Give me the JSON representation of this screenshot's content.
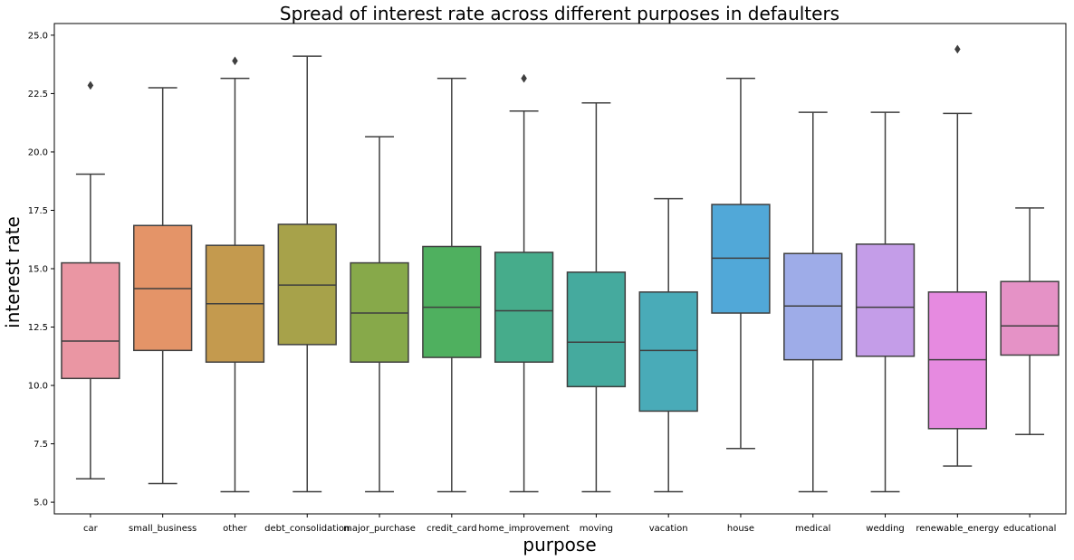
{
  "chart_data": {
    "type": "box",
    "title": "Spread of interest rate across different purposes in defaulters",
    "xlabel": "purpose",
    "ylabel": "interest rate",
    "ylim": [
      4.5,
      25.5
    ],
    "yticks": [
      5.0,
      7.5,
      10.0,
      12.5,
      15.0,
      17.5,
      20.0,
      22.5,
      25.0
    ],
    "ytick_labels": [
      "5.0",
      "7.5",
      "10.0",
      "12.5",
      "15.0",
      "17.5",
      "20.0",
      "22.5",
      "25.0"
    ],
    "grid": false,
    "categories": [
      "car",
      "small_business",
      "other",
      "debt_consolidation",
      "major_purchase",
      "credit_card",
      "home_improvement",
      "moving",
      "vacation",
      "house",
      "medical",
      "wedding",
      "renewable_energy",
      "educational"
    ],
    "boxes": [
      {
        "category": "car",
        "whisker_low": 6.0,
        "q1": 10.3,
        "median": 11.9,
        "q3": 15.25,
        "whisker_high": 19.05,
        "outliers": [
          22.85
        ],
        "color": "#ea96a3"
      },
      {
        "category": "small_business",
        "whisker_low": 5.8,
        "q1": 11.5,
        "median": 14.15,
        "q3": 16.85,
        "whisker_high": 22.75,
        "outliers": [],
        "color": "#e49468"
      },
      {
        "category": "other",
        "whisker_low": 5.45,
        "q1": 11.0,
        "median": 13.5,
        "q3": 16.0,
        "whisker_high": 23.15,
        "outliers": [
          23.9
        ],
        "color": "#c49a4e"
      },
      {
        "category": "debt_consolidation",
        "whisker_low": 5.45,
        "q1": 11.75,
        "median": 14.3,
        "q3": 16.9,
        "whisker_high": 24.1,
        "outliers": [],
        "color": "#a7a24a"
      },
      {
        "category": "major_purchase",
        "whisker_low": 5.45,
        "q1": 11.0,
        "median": 13.1,
        "q3": 15.25,
        "whisker_high": 20.65,
        "outliers": [],
        "color": "#87a94a"
      },
      {
        "category": "credit_card",
        "whisker_low": 5.45,
        "q1": 11.2,
        "median": 13.35,
        "q3": 15.95,
        "whisker_high": 23.15,
        "outliers": [],
        "color": "#4fb05f"
      },
      {
        "category": "home_improvement",
        "whisker_low": 5.45,
        "q1": 11.0,
        "median": 13.2,
        "q3": 15.7,
        "whisker_high": 21.75,
        "outliers": [
          23.15
        ],
        "color": "#46ac8b"
      },
      {
        "category": "moving",
        "whisker_low": 5.45,
        "q1": 9.95,
        "median": 11.85,
        "q3": 14.85,
        "whisker_high": 22.1,
        "outliers": [],
        "color": "#45aa9e"
      },
      {
        "category": "vacation",
        "whisker_low": 5.45,
        "q1": 8.9,
        "median": 11.5,
        "q3": 14.0,
        "whisker_high": 18.0,
        "outliers": [],
        "color": "#49abb8"
      },
      {
        "category": "house",
        "whisker_low": 7.3,
        "q1": 13.1,
        "median": 15.45,
        "q3": 17.75,
        "whisker_high": 23.15,
        "outliers": [],
        "color": "#51a8d8"
      },
      {
        "category": "medical",
        "whisker_low": 5.45,
        "q1": 11.1,
        "median": 13.4,
        "q3": 15.65,
        "whisker_high": 21.7,
        "outliers": [],
        "color": "#9eace8"
      },
      {
        "category": "wedding",
        "whisker_low": 5.45,
        "q1": 11.25,
        "median": 13.35,
        "q3": 16.05,
        "whisker_high": 21.7,
        "outliers": [],
        "color": "#c49de8"
      },
      {
        "category": "renewable_energy",
        "whisker_low": 6.55,
        "q1": 8.15,
        "median": 11.1,
        "q3": 14.0,
        "whisker_high": 21.65,
        "outliers": [
          24.4
        ],
        "color": "#e68ae0"
      },
      {
        "category": "educational",
        "whisker_low": 7.9,
        "q1": 11.3,
        "median": 12.55,
        "q3": 14.45,
        "whisker_high": 17.6,
        "outliers": [],
        "color": "#e592c6"
      }
    ]
  }
}
